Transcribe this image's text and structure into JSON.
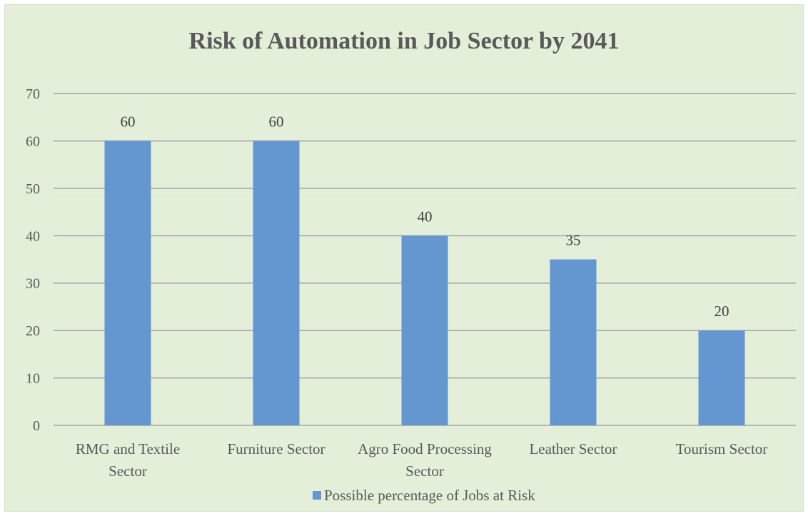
{
  "chart_data": {
    "type": "bar",
    "title": "Risk of Automation in Job Sector by 2041",
    "categories": [
      [
        "RMG and Textile",
        "Sector"
      ],
      [
        "Furniture Sector"
      ],
      [
        "Agro Food Processing",
        "Sector"
      ],
      [
        "Leather Sector"
      ],
      [
        "Tourism Sector"
      ]
    ],
    "series": [
      {
        "name": "Possible percentage of Jobs at Risk",
        "values": [
          60,
          60,
          40,
          35,
          20
        ],
        "color": "#6497cf"
      }
    ],
    "ylim": [
      0,
      70
    ],
    "yticks": [
      0,
      10,
      20,
      30,
      40,
      50,
      60,
      70
    ],
    "grid": true,
    "legend_position": "bottom",
    "colors": {
      "background": "#e3efd9",
      "gridline": "#a6a6a6",
      "text": "#595959"
    }
  }
}
